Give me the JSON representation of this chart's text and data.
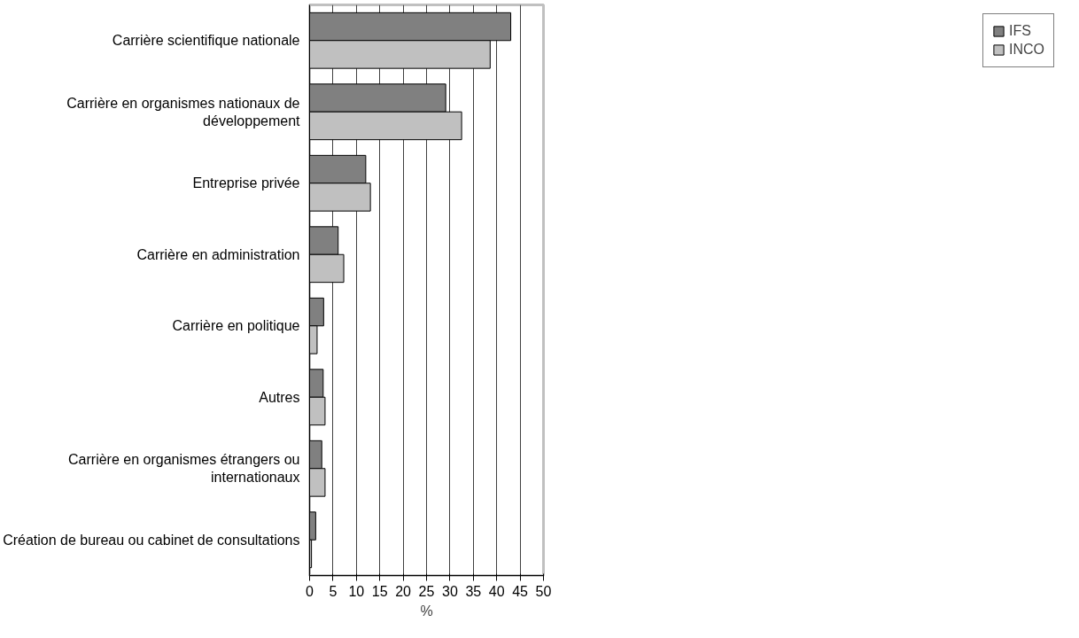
{
  "chart_data": {
    "type": "bar",
    "orientation": "horizontal",
    "xlabel": "%",
    "categories": [
      "Carrière scientifique nationale",
      "Carrière en organismes nationaux de développement",
      "Entreprise privée",
      "Carrière en administration",
      "Carrière en politique",
      "Autres",
      "Carrière en organismes étrangers ou internationaux",
      "Création de bureau ou cabinet de consultations"
    ],
    "series": [
      {
        "name": "IFS",
        "color": "#808080",
        "values": [
          43.0,
          29.1,
          12.0,
          6.1,
          3.0,
          2.9,
          2.6,
          1.3
        ]
      },
      {
        "name": "INCO",
        "color": "#c0c0c0",
        "values": [
          38.6,
          32.5,
          13.0,
          7.3,
          1.6,
          3.3,
          3.3,
          0.4
        ]
      }
    ],
    "xlim": [
      0,
      50
    ],
    "xticks": [
      0,
      5,
      10,
      15,
      20,
      25,
      30,
      35,
      40,
      45,
      50
    ],
    "grid": "x",
    "legend": "right"
  }
}
